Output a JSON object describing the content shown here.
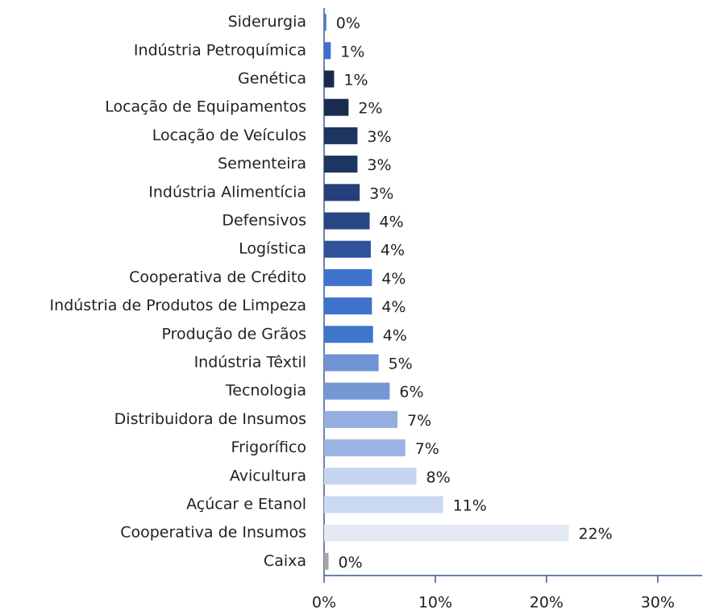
{
  "chart_data": {
    "type": "hbar",
    "categories": [
      "Siderurgia",
      "Indústria Petroquímica",
      "Genética",
      "Locação de Equipamentos",
      "Locação de Veículos",
      "Sementeira",
      "Indústria Alimentícia",
      "Defensivos",
      "Logística",
      "Cooperativa de Crédito",
      "Indústria de Produtos de Limpeza",
      "Produção de Grãos",
      "Indústria Têxtil",
      "Tecnologia",
      "Distribuidora de Insumos",
      "Frigorífico",
      "Avicultura",
      "Açúcar e Etanol",
      "Cooperativa de Insumos",
      "Caixa"
    ],
    "values": [
      0.2,
      0.6,
      0.9,
      2.2,
      3.0,
      3.0,
      3.2,
      4.1,
      4.2,
      4.3,
      4.3,
      4.4,
      4.9,
      5.9,
      6.6,
      7.3,
      8.3,
      10.7,
      22.0,
      0.4
    ],
    "value_labels": [
      "0%",
      "1%",
      "1%",
      "2%",
      "3%",
      "3%",
      "3%",
      "4%",
      "4%",
      "4%",
      "4%",
      "4%",
      "5%",
      "6%",
      "7%",
      "7%",
      "8%",
      "11%",
      "22%",
      "0%"
    ],
    "colors": [
      "#4a7bd0",
      "#3d6fd0",
      "#1b2a4a",
      "#192c4f",
      "#1e3461",
      "#1e3461",
      "#25407a",
      "#2a4785",
      "#2f529a",
      "#3f72cc",
      "#3f72cc",
      "#4075cc",
      "#6f93d4",
      "#7597d6",
      "#94aee0",
      "#9ab3e2",
      "#c7d6ef",
      "#cbd9f0",
      "#e3eaf6",
      "#a6a6a6"
    ],
    "xlim": [
      0,
      34
    ],
    "xticks": [
      {
        "value": 0,
        "label": "0%"
      },
      {
        "value": 10,
        "label": "10%"
      },
      {
        "value": 20,
        "label": "20%"
      },
      {
        "value": 30,
        "label": "30%"
      }
    ]
  }
}
